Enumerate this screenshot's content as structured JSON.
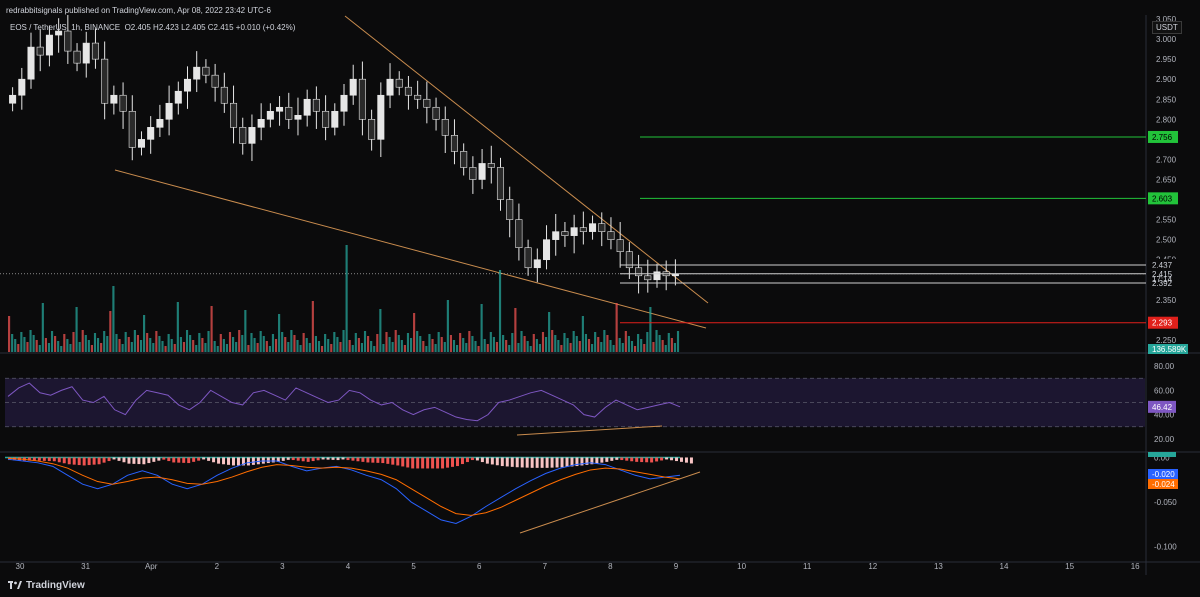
{
  "header": {
    "publisher": "redrabbitsignals published on TradingView.com, Apr 08, 2022 23:42 UTC-6",
    "symbol": "EOS / TetherUS, 1h, BINANCE",
    "ohlc": "O2.405  H2.423  L2.405  C2.415  +0.010 (+0.42%)",
    "currency": "USDT"
  },
  "footer": {
    "brand": "TradingView",
    "logo_icon": "tradingview-logo-icon"
  },
  "colors": {
    "background": "#0b0b0c",
    "candle": "#e6e6e6",
    "trendline": "#c98c4e",
    "green_level": "#22c33a",
    "red_level": "#e0201b",
    "white_level": "#cfcfcf",
    "rsi_line": "#7e57c2",
    "rsi_band": "#1c1630",
    "macd_line": "#2962ff",
    "signal_line": "#ff6d00",
    "vol_up": "#26a69a",
    "vol_down": "#ef5350"
  },
  "chart_data": [
    {
      "type": "candlestick",
      "panel": "price",
      "y_ticks": [
        "3.050",
        "3.000",
        "2.950",
        "2.900",
        "2.850",
        "2.800",
        "2.750",
        "2.700",
        "2.650",
        "2.600",
        "2.550",
        "2.500",
        "2.450",
        "2.400",
        "2.350",
        "2.300",
        "2.250"
      ],
      "ylim": [
        2.22,
        3.06
      ],
      "x_tick_labels": [
        "30",
        "31",
        "Apr",
        "2",
        "3",
        "4",
        "5",
        "6",
        "7",
        "8",
        "9",
        "10",
        "11",
        "12",
        "13",
        "14",
        "15",
        "16"
      ],
      "closes_approx": [
        2.86,
        2.9,
        2.98,
        2.96,
        3.01,
        3.02,
        2.97,
        2.94,
        2.99,
        2.95,
        2.84,
        2.86,
        2.82,
        2.73,
        2.75,
        2.78,
        2.8,
        2.84,
        2.87,
        2.9,
        2.93,
        2.91,
        2.88,
        2.84,
        2.78,
        2.74,
        2.78,
        2.8,
        2.82,
        2.83,
        2.8,
        2.81,
        2.85,
        2.82,
        2.78,
        2.82,
        2.86,
        2.9,
        2.8,
        2.75,
        2.86,
        2.9,
        2.88,
        2.86,
        2.85,
        2.83,
        2.8,
        2.76,
        2.72,
        2.68,
        2.65,
        2.69,
        2.68,
        2.6,
        2.55,
        2.48,
        2.43,
        2.45,
        2.5,
        2.52,
        2.51,
        2.53,
        2.52,
        2.54,
        2.52,
        2.5,
        2.47,
        2.43,
        2.41,
        2.4,
        2.42,
        2.41,
        2.415
      ],
      "levels": [
        {
          "label": "2.756",
          "value": 2.756,
          "color": "green"
        },
        {
          "label": "2.603",
          "value": 2.603,
          "color": "green"
        },
        {
          "label": "2.437",
          "value": 2.437,
          "color": "white"
        },
        {
          "label": "2.415",
          "value": 2.415,
          "color": "white"
        },
        {
          "label": "2.392",
          "value": 2.392,
          "color": "white"
        },
        {
          "label": "2.293",
          "value": 2.293,
          "color": "red"
        }
      ],
      "countdown": "17:14",
      "volume_label": "136.589K",
      "trendlines": [
        {
          "name": "upper",
          "from": [
            0.0,
            3.05
          ],
          "to": [
            0.59,
            2.37
          ]
        },
        {
          "name": "lower",
          "from": [
            0.1,
            2.67
          ],
          "to": [
            0.59,
            2.28
          ]
        }
      ]
    },
    {
      "type": "line",
      "panel": "rsi",
      "y_ticks": [
        "80.00",
        "60.00",
        "40.00",
        "20.00"
      ],
      "ylim": [
        10,
        90
      ],
      "band": [
        30,
        70
      ],
      "current_label": "46.42",
      "values": [
        55,
        62,
        66,
        58,
        56,
        60,
        63,
        52,
        50,
        55,
        44,
        40,
        52,
        60,
        58,
        56,
        48,
        44,
        50,
        60,
        55,
        50,
        48,
        58,
        60,
        56,
        52,
        62,
        58,
        54,
        50,
        52,
        60,
        58,
        52,
        48,
        50,
        44,
        40,
        44,
        46,
        42,
        38,
        36,
        35,
        40,
        50,
        52,
        55,
        58,
        60,
        56,
        52,
        48,
        40,
        38,
        46,
        52,
        48,
        44,
        46,
        48,
        50,
        46.42
      ],
      "divergence_line": {
        "from": [
          0.44,
          33
        ],
        "to": [
          0.57,
          36
        ]
      }
    },
    {
      "type": "histogram+line",
      "panel": "macd",
      "y_ticks": [
        "0.00",
        "-0.050",
        "-0.100"
      ],
      "ylim": [
        -0.115,
        0.005
      ],
      "labels": [
        {
          "label": "-0.020",
          "color": "blue"
        },
        {
          "label": "-0.024",
          "color": "orange"
        }
      ],
      "macd": [
        -0.002,
        -0.004,
        -0.006,
        -0.01,
        -0.02,
        -0.03,
        -0.035,
        -0.03,
        -0.02,
        -0.015,
        -0.02,
        -0.03,
        -0.035,
        -0.03,
        -0.02,
        -0.012,
        -0.006,
        -0.004,
        -0.004,
        -0.01,
        -0.015,
        -0.012,
        -0.01,
        -0.014,
        -0.02,
        -0.025,
        -0.035,
        -0.05,
        -0.06,
        -0.07,
        -0.074,
        -0.066,
        -0.055,
        -0.045,
        -0.035,
        -0.026,
        -0.018,
        -0.012,
        -0.008,
        -0.006,
        -0.008,
        -0.014,
        -0.02,
        -0.024,
        -0.022,
        -0.02
      ],
      "signal": [
        -0.001,
        -0.002,
        -0.004,
        -0.007,
        -0.012,
        -0.02,
        -0.027,
        -0.03,
        -0.027,
        -0.023,
        -0.022,
        -0.025,
        -0.029,
        -0.03,
        -0.027,
        -0.022,
        -0.016,
        -0.011,
        -0.008,
        -0.009,
        -0.011,
        -0.012,
        -0.011,
        -0.012,
        -0.015,
        -0.019,
        -0.025,
        -0.035,
        -0.045,
        -0.055,
        -0.063,
        -0.065,
        -0.062,
        -0.056,
        -0.048,
        -0.04,
        -0.032,
        -0.025,
        -0.019,
        -0.014,
        -0.012,
        -0.013,
        -0.016,
        -0.019,
        -0.022,
        -0.024
      ],
      "divergence_line": {
        "from": [
          0.44,
          -0.108
        ],
        "to": [
          0.59,
          -0.026
        ]
      }
    }
  ]
}
